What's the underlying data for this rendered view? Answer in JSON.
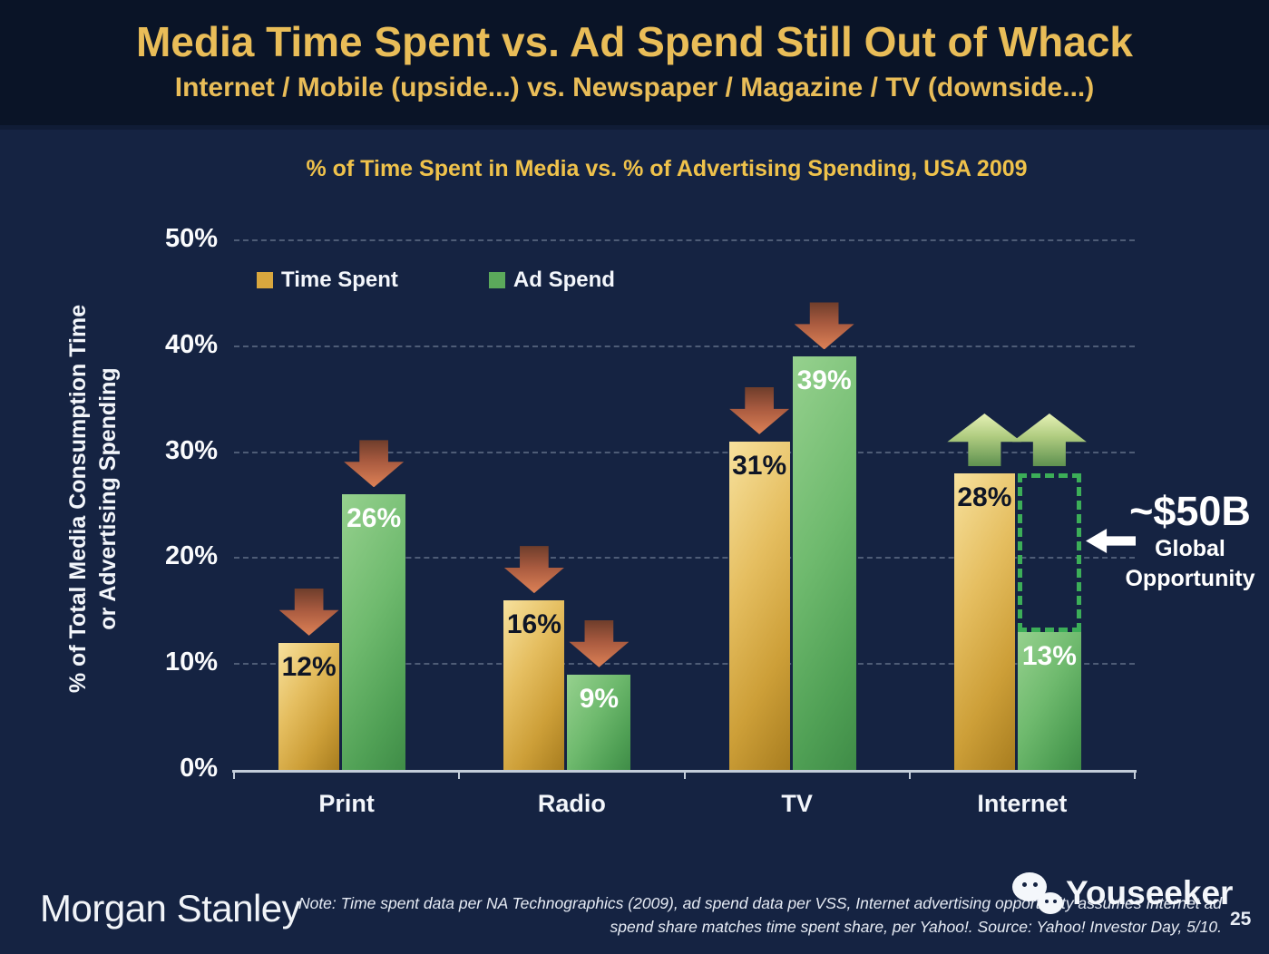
{
  "header": {
    "title": "Media Time Spent vs. Ad Spend Still Out of Whack",
    "subtitle": "Internet / Mobile (upside...) vs. Newspaper / Magazine / TV (downside...)"
  },
  "chart_data": {
    "type": "bar",
    "title": "% of Time Spent in Media vs. % of Advertising Spending, USA 2009",
    "categories": [
      "Print",
      "Radio",
      "TV",
      "Internet"
    ],
    "series": [
      {
        "name": "Time Spent",
        "color": "#D9A73E",
        "values": [
          12,
          16,
          31,
          28
        ],
        "label_color": "#0E1526"
      },
      {
        "name": "Ad Spend",
        "color": "#5BA95B",
        "values": [
          26,
          9,
          39,
          13
        ],
        "label_color": "#FFFFFF"
      }
    ],
    "unit": "%",
    "ylabel_lines": [
      "% of Total Media Consumption Time",
      "or Advertising Spending"
    ],
    "yticks": [
      "0%",
      "10%",
      "20%",
      "30%",
      "40%",
      "50%"
    ],
    "ylim": [
      0,
      50
    ],
    "grid": "dashed-horizontal",
    "legend_position": "top-left-inside",
    "trend_arrows": [
      [
        "down",
        "down"
      ],
      [
        "down",
        "down"
      ],
      [
        "down",
        "down"
      ],
      [
        "up",
        "up"
      ]
    ],
    "arrow_colors": {
      "down": "#C96F49",
      "up": "#9FC36B"
    },
    "gap_annotation": {
      "category": "Internet",
      "series_high": "Time Spent",
      "series_low": "Ad Spend",
      "outline_color": "#3CAE58",
      "label": "~$50B Global Opportunity"
    }
  },
  "annotation": {
    "headline": "~$50B",
    "line1": "Global",
    "line2": "Opportunity"
  },
  "footer": {
    "logo": "Morgan Stanley",
    "note_line1": "Note: Time spent data per NA Technographics (2009), ad spend data per VSS, Internet advertising opportunity assumes Internet ad",
    "note_line2": "spend share matches time spent share, per Yahoo!. Source: Yahoo! Investor Day, 5/10.",
    "watermark": "Youseeker",
    "page": "25"
  }
}
